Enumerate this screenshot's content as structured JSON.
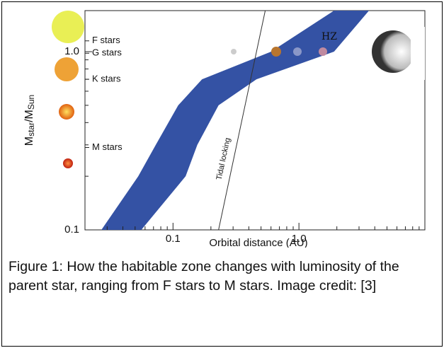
{
  "chart_data": {
    "type": "band",
    "xlabel": "Orbital distance (AU)",
    "ylabel": [
      "M",
      "star",
      "/M",
      "Sun"
    ],
    "xlog": true,
    "ylog": true,
    "xlim": [
      0.02,
      10
    ],
    "ylim": [
      0.1,
      1.7
    ],
    "xticks": [
      0.1,
      {
        "value": 1,
        "label": "1.0"
      }
    ],
    "yticks": [
      0.1,
      {
        "value": 1,
        "label": "1.0"
      }
    ],
    "xminorticks": [
      0.03,
      0.04,
      0.05,
      0.06,
      0.07,
      0.08,
      0.09,
      0.2,
      0.3,
      0.4,
      0.5,
      0.6,
      0.7,
      0.8,
      0.9,
      2,
      3,
      4,
      5,
      6,
      7,
      8,
      9
    ],
    "yminorticks": [
      0.2,
      0.3,
      0.4,
      0.5,
      0.6,
      0.7,
      0.8,
      0.9
    ],
    "star_types": [
      {
        "label": "F stars",
        "mass": 1.15
      },
      {
        "label": "G stars",
        "mass": 0.98
      },
      {
        "label": "K stars",
        "mass": 0.7
      },
      {
        "label": "M stars",
        "mass": 0.29
      }
    ],
    "band": {
      "label": "HZ",
      "color": "#3452a4",
      "masses": [
        0.1,
        0.2,
        0.3,
        0.5,
        0.7,
        1.0,
        1.7
      ],
      "inner": [
        0.027,
        0.053,
        0.073,
        0.11,
        0.17,
        0.6,
        1.9
      ],
      "outer": [
        0.056,
        0.126,
        0.156,
        0.23,
        0.46,
        1.9,
        3.6
      ]
    },
    "tidal_line": {
      "label": "Tidal locking",
      "x": [
        0.23,
        0.54
      ],
      "y": [
        0.1,
        1.7
      ]
    }
  },
  "caption": "Figure 1: How the habitable zone changes with luminosity of the parent star, ranging from F stars to M stars. Image credit: [3]"
}
